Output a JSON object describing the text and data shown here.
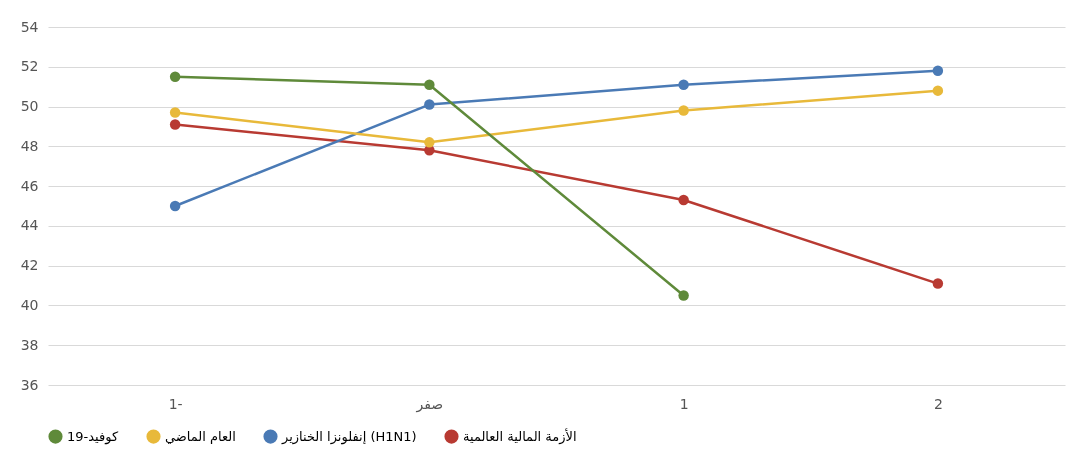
{
  "chart_data": {
    "type": "line",
    "categories": [
      "1-",
      "صفر",
      "1",
      "2"
    ],
    "series": [
      {
        "name": "الأزمة المالية العالمية",
        "color": "#b83a32",
        "values": [
          49.1,
          47.8,
          45.3,
          41.1
        ]
      },
      {
        "name": "إنفلونزا الخنازير (H1N1)",
        "color": "#4a7ab5",
        "values": [
          45.0,
          50.1,
          51.1,
          51.8
        ]
      },
      {
        "name": "العام الماضي",
        "color": "#e8b93a",
        "values": [
          49.7,
          48.2,
          49.8,
          50.8
        ]
      },
      {
        "name": "كوفيد-19",
        "color": "#5f8a3a",
        "values": [
          51.5,
          51.1,
          40.5,
          null
        ]
      }
    ],
    "ylim": [
      36,
      54
    ],
    "yticks": [
      36,
      38,
      40,
      42,
      44,
      46,
      48,
      50,
      52,
      54
    ],
    "grid": "y",
    "legend": "bottom",
    "marker": "circle",
    "line_style": "solid"
  }
}
